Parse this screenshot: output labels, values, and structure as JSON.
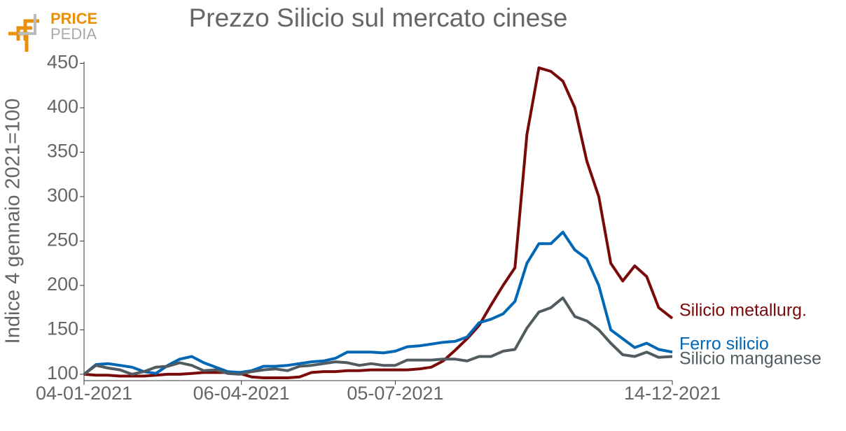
{
  "logo": {
    "line1": "PRICE",
    "line2": "PEDIA"
  },
  "chart_data": {
    "type": "line",
    "title": "Prezzo Silicio sul mercato cinese",
    "y_label": "Indice 4 gennaio 2021=100",
    "x": [
      "04-01-2021",
      "11-01-2021",
      "18-01-2021",
      "25-01-2021",
      "01-02-2021",
      "08-02-2021",
      "15-02-2021",
      "22-02-2021",
      "01-03-2021",
      "08-03-2021",
      "15-03-2021",
      "22-03-2021",
      "29-03-2021",
      "05-04-2021",
      "12-04-2021",
      "19-04-2021",
      "26-04-2021",
      "03-05-2021",
      "10-05-2021",
      "17-05-2021",
      "24-05-2021",
      "31-05-2021",
      "07-06-2021",
      "14-06-2021",
      "21-06-2021",
      "28-06-2021",
      "05-07-2021",
      "12-07-2021",
      "19-07-2021",
      "26-07-2021",
      "02-08-2021",
      "09-08-2021",
      "16-08-2021",
      "23-08-2021",
      "30-08-2021",
      "06-09-2021",
      "13-09-2021",
      "20-09-2021",
      "27-09-2021",
      "04-10-2021",
      "11-10-2021",
      "18-10-2021",
      "25-10-2021",
      "01-11-2021",
      "08-11-2021",
      "15-11-2021",
      "22-11-2021",
      "29-11-2021",
      "06-12-2021",
      "14-12-2021"
    ],
    "series": [
      {
        "name": "Silicio metallurg.",
        "color": "#7a0a0a",
        "values": [
          100,
          99,
          99,
          98,
          98,
          98,
          99,
          100,
          100,
          101,
          102,
          102,
          102,
          101,
          97,
          96,
          96,
          96,
          97,
          102,
          103,
          103,
          104,
          104,
          105,
          105,
          105,
          105,
          106,
          108,
          115,
          127,
          140,
          155,
          178,
          200,
          220,
          370,
          445,
          441,
          430,
          400,
          340,
          300,
          225,
          205,
          222,
          210,
          175,
          163
        ]
      },
      {
        "name": "Ferro silicio",
        "color": "#0067b5",
        "values": [
          100,
          111,
          112,
          110,
          108,
          103,
          101,
          110,
          117,
          120,
          113,
          108,
          103,
          102,
          104,
          109,
          109,
          110,
          112,
          114,
          115,
          118,
          125,
          125,
          125,
          124,
          126,
          131,
          132,
          134,
          136,
          137,
          142,
          158,
          162,
          168,
          182,
          225,
          247,
          247,
          260,
          240,
          230,
          200,
          150,
          140,
          130,
          135,
          128,
          125
        ]
      },
      {
        "name": "Silicio manganese",
        "color": "#525c60",
        "values": [
          100,
          110,
          107,
          105,
          100,
          103,
          108,
          109,
          113,
          110,
          104,
          105,
          101,
          100,
          103,
          105,
          106,
          104,
          109,
          110,
          112,
          114,
          113,
          110,
          112,
          110,
          110,
          116,
          116,
          116,
          117,
          117,
          115,
          120,
          120,
          126,
          128,
          152,
          170,
          175,
          186,
          165,
          160,
          150,
          135,
          122,
          120,
          125,
          119,
          120
        ]
      }
    ],
    "xlim": [
      "04-01-2021",
      "14-12-2021"
    ],
    "xticks": [
      "04-01-2021",
      "06-04-2021",
      "05-07-2021",
      "14-12-2021"
    ],
    "ylim": [
      96,
      452
    ],
    "yticks": [
      100,
      150,
      200,
      250,
      300,
      350,
      400,
      450
    ],
    "grid": false
  }
}
